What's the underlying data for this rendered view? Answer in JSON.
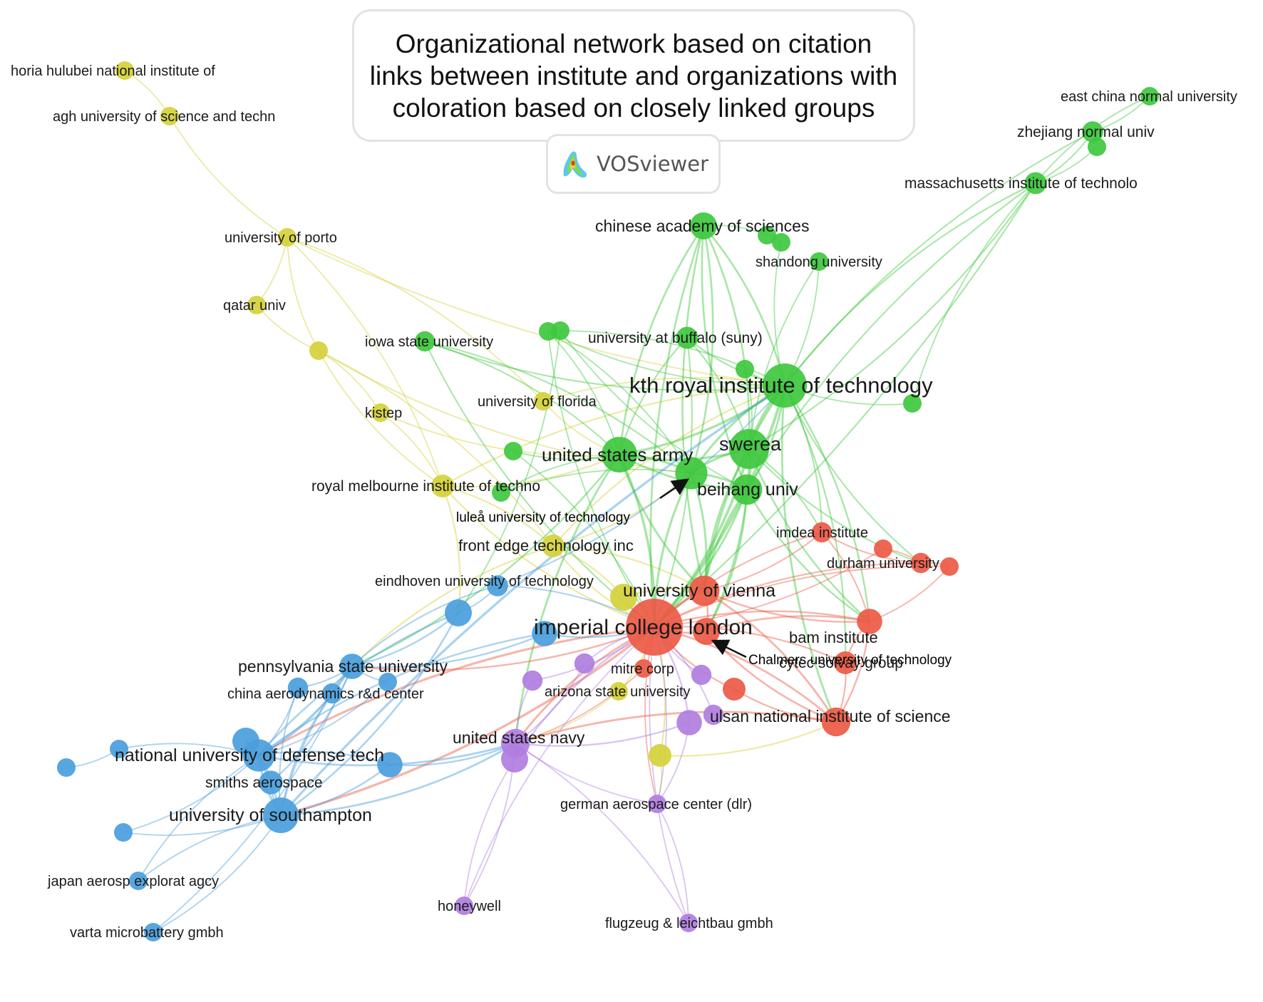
{
  "title": "Organizational network based on citation links between institute and organizations with coloration based on closely linked groups",
  "logo": {
    "text": "VOSviewer"
  },
  "clusters": {
    "yellow": "#d4d13a",
    "green": "#3ec83e",
    "red": "#ec5a45",
    "blue": "#4a9edc",
    "purple": "#b07ee0"
  },
  "network": {
    "nodes": [
      {
        "id": "horia",
        "label": "horia hulubei national institute of",
        "cluster": "yellow",
        "size": 1
      },
      {
        "id": "agh",
        "label": "agh university of science and techn",
        "cluster": "yellow",
        "size": 1
      },
      {
        "id": "porto",
        "label": "university of porto",
        "cluster": "yellow",
        "size": 1
      },
      {
        "id": "qatar",
        "label": "qatar univ",
        "cluster": "yellow",
        "size": 1
      },
      {
        "id": "y_unl1",
        "label": "",
        "cluster": "yellow",
        "size": 1
      },
      {
        "id": "kistep",
        "label": "kistep",
        "cluster": "yellow",
        "size": 1
      },
      {
        "id": "florida",
        "label": "university of florida",
        "cluster": "yellow",
        "size": 1
      },
      {
        "id": "rmit",
        "label": "royal melbourne institute of techno",
        "cluster": "yellow",
        "size": 1.5
      },
      {
        "id": "frontedge",
        "label": "front edge technology inc",
        "cluster": "yellow",
        "size": 1.5
      },
      {
        "id": "y_unl2",
        "label": "",
        "cluster": "yellow",
        "size": 2
      },
      {
        "id": "arizona",
        "label": "arizona state university",
        "cluster": "yellow",
        "size": 1
      },
      {
        "id": "y_unl3",
        "label": "",
        "cluster": "yellow",
        "size": 1.5
      },
      {
        "id": "ecnu",
        "label": "east china normal university",
        "cluster": "green",
        "size": 1
      },
      {
        "id": "zhejiang",
        "label": "zhejiang normal univ",
        "cluster": "green",
        "size": 1.3
      },
      {
        "id": "g_unl1",
        "label": "",
        "cluster": "green",
        "size": 1
      },
      {
        "id": "mit",
        "label": "massachusetts institute of technolo",
        "cluster": "green",
        "size": 1.4
      },
      {
        "id": "cas",
        "label": "chinese academy of sciences",
        "cluster": "green",
        "size": 2
      },
      {
        "id": "g_unl2",
        "label": "",
        "cluster": "green",
        "size": 1
      },
      {
        "id": "g_unl3",
        "label": "",
        "cluster": "green",
        "size": 1
      },
      {
        "id": "shandong",
        "label": "shandong university",
        "cluster": "green",
        "size": 1
      },
      {
        "id": "iowa",
        "label": "iowa state university",
        "cluster": "green",
        "size": 1.2
      },
      {
        "id": "g_unl4",
        "label": "",
        "cluster": "green",
        "size": 1
      },
      {
        "id": "g_unl5",
        "label": "",
        "cluster": "green",
        "size": 1
      },
      {
        "id": "buffalo",
        "label": "university at buffalo (suny)",
        "cluster": "green",
        "size": 1.4
      },
      {
        "id": "g_unl6",
        "label": "",
        "cluster": "green",
        "size": 1
      },
      {
        "id": "kth",
        "label": "kth royal institute of technology",
        "cluster": "green",
        "size": 4
      },
      {
        "id": "g_unl7",
        "label": "",
        "cluster": "green",
        "size": 1
      },
      {
        "id": "usarmy",
        "label": "united states army",
        "cluster": "green",
        "size": 3
      },
      {
        "id": "swerea",
        "label": "swerea",
        "cluster": "green",
        "size": 3.5
      },
      {
        "id": "lulea",
        "label": "luleå university of technology",
        "cluster": "green",
        "size": 2.6
      },
      {
        "id": "beihang",
        "label": "beihang univ",
        "cluster": "green",
        "size": 2.4
      },
      {
        "id": "g_unl8",
        "label": "",
        "cluster": "green",
        "size": 1
      },
      {
        "id": "g_unl9",
        "label": "",
        "cluster": "green",
        "size": 1
      },
      {
        "id": "imdea",
        "label": "imdea institute",
        "cluster": "red",
        "size": 1.2
      },
      {
        "id": "durham",
        "label": "durham university",
        "cluster": "red",
        "size": 1.2
      },
      {
        "id": "r_unl1",
        "label": "",
        "cluster": "red",
        "size": 1
      },
      {
        "id": "r_unl2",
        "label": "",
        "cluster": "red",
        "size": 1
      },
      {
        "id": "vienna",
        "label": "university of vienna",
        "cluster": "red",
        "size": 2.4
      },
      {
        "id": "imperial",
        "label": "imperial college london",
        "cluster": "red",
        "size": 5.5
      },
      {
        "id": "chalmers",
        "label": "Chalmers university of technology",
        "cluster": "red",
        "size": 2
      },
      {
        "id": "bam",
        "label": "bam institute",
        "cluster": "red",
        "size": 1.8
      },
      {
        "id": "mitre",
        "label": "mitre corp",
        "cluster": "red",
        "size": 1
      },
      {
        "id": "cytec",
        "label": "cytec solvay group",
        "cluster": "red",
        "size": 1.5
      },
      {
        "id": "r_unl3",
        "label": "",
        "cluster": "red",
        "size": 1.5
      },
      {
        "id": "ulsan",
        "label": "ulsan national institute of science",
        "cluster": "red",
        "size": 2.2
      },
      {
        "id": "eindhoven",
        "label": "eindhoven university of technology",
        "cluster": "blue",
        "size": 1.3
      },
      {
        "id": "b_unl1",
        "label": "",
        "cluster": "blue",
        "size": 2
      },
      {
        "id": "b_unl2",
        "label": "",
        "cluster": "blue",
        "size": 1.8
      },
      {
        "id": "pennstate",
        "label": "pennsylvania state university",
        "cluster": "blue",
        "size": 1.8
      },
      {
        "id": "b_unl3",
        "label": "",
        "cluster": "blue",
        "size": 1.2
      },
      {
        "id": "china_aero",
        "label": "china aerodynamics r&d center",
        "cluster": "blue",
        "size": 1.2
      },
      {
        "id": "b_unl4",
        "label": "",
        "cluster": "blue",
        "size": 1
      },
      {
        "id": "b_unl5",
        "label": "",
        "cluster": "blue",
        "size": 1
      },
      {
        "id": "b_unl6",
        "label": "",
        "cluster": "blue",
        "size": 1
      },
      {
        "id": "nudt",
        "label": "national university of defense tech",
        "cluster": "blue",
        "size": 2.6
      },
      {
        "id": "b_unl7",
        "label": "",
        "cluster": "blue",
        "size": 2
      },
      {
        "id": "smiths",
        "label": "smiths aerospace",
        "cluster": "blue",
        "size": 1.6
      },
      {
        "id": "b_unl8",
        "label": "",
        "cluster": "blue",
        "size": 1.8
      },
      {
        "id": "southampton",
        "label": "university of southampton",
        "cluster": "blue",
        "size": 3
      },
      {
        "id": "b_unl9",
        "label": "",
        "cluster": "blue",
        "size": 1
      },
      {
        "id": "jaxa",
        "label": "japan aerosp explorat agcy",
        "cluster": "blue",
        "size": 1
      },
      {
        "id": "varta",
        "label": "varta microbattery gmbh",
        "cluster": "blue",
        "size": 1
      },
      {
        "id": "usnavy",
        "label": "united states navy",
        "cluster": "purple",
        "size": 2.2
      },
      {
        "id": "p_unl1",
        "label": "",
        "cluster": "purple",
        "size": 2
      },
      {
        "id": "p_unl2",
        "label": "",
        "cluster": "purple",
        "size": 1.2
      },
      {
        "id": "p_unl3",
        "label": "",
        "cluster": "purple",
        "size": 1.2
      },
      {
        "id": "p_unl4",
        "label": "",
        "cluster": "purple",
        "size": 1.2
      },
      {
        "id": "p_unl5",
        "label": "",
        "cluster": "purple",
        "size": 1.8
      },
      {
        "id": "p_unl6",
        "label": "",
        "cluster": "purple",
        "size": 1.2
      },
      {
        "id": "dlr",
        "label": "german aerospace center (dlr)",
        "cluster": "purple",
        "size": 1
      },
      {
        "id": "honeywell",
        "label": "honeywell",
        "cluster": "purple",
        "size": 1
      },
      {
        "id": "flugzeug",
        "label": "flugzeug & leichtbau gmbh",
        "cluster": "purple",
        "size": 1
      }
    ],
    "edges": [
      [
        "horia",
        "agh"
      ],
      [
        "agh",
        "porto"
      ],
      [
        "porto",
        "qatar"
      ],
      [
        "porto",
        "y_unl1"
      ],
      [
        "porto",
        "florida"
      ],
      [
        "porto",
        "kth"
      ],
      [
        "porto",
        "rmit"
      ],
      [
        "qatar",
        "y_unl1"
      ],
      [
        "y_unl1",
        "kistep"
      ],
      [
        "y_unl1",
        "rmit"
      ],
      [
        "y_unl1",
        "frontedge"
      ],
      [
        "y_unl1",
        "lulea"
      ],
      [
        "kistep",
        "rmit"
      ],
      [
        "kistep",
        "usarmy"
      ],
      [
        "rmit",
        "frontedge"
      ],
      [
        "rmit",
        "imperial"
      ],
      [
        "rmit",
        "kth"
      ],
      [
        "rmit",
        "usarmy"
      ],
      [
        "rmit",
        "b_unl1"
      ],
      [
        "frontedge",
        "imperial"
      ],
      [
        "frontedge",
        "vienna"
      ],
      [
        "frontedge",
        "lulea"
      ],
      [
        "frontedge",
        "kth"
      ],
      [
        "frontedge",
        "pennstate"
      ],
      [
        "frontedge",
        "y_unl2"
      ],
      [
        "florida",
        "usarmy"
      ],
      [
        "florida",
        "kth"
      ],
      [
        "y_unl2",
        "imperial"
      ],
      [
        "y_unl2",
        "vienna"
      ],
      [
        "arizona",
        "imperial"
      ],
      [
        "arizona",
        "usnavy"
      ],
      [
        "y_unl3",
        "imperial"
      ],
      [
        "y_unl3",
        "dlr"
      ],
      [
        "y_unl3",
        "ulsan"
      ],
      [
        "ecnu",
        "zhejiang"
      ],
      [
        "ecnu",
        "mit"
      ],
      [
        "zhejiang",
        "mit"
      ],
      [
        "zhejiang",
        "kth"
      ],
      [
        "g_unl1",
        "mit"
      ],
      [
        "mit",
        "kth"
      ],
      [
        "mit",
        "swerea"
      ],
      [
        "mit",
        "beihang"
      ],
      [
        "mit",
        "imperial"
      ],
      [
        "mit",
        "g_unl7"
      ],
      [
        "cas",
        "kth"
      ],
      [
        "cas",
        "usarmy"
      ],
      [
        "cas",
        "swerea"
      ],
      [
        "cas",
        "beihang"
      ],
      [
        "cas",
        "lulea"
      ],
      [
        "cas",
        "imperial"
      ],
      [
        "cas",
        "g_unl2"
      ],
      [
        "cas",
        "vienna"
      ],
      [
        "g_unl2",
        "g_unl3"
      ],
      [
        "g_unl3",
        "kth"
      ],
      [
        "shandong",
        "kth"
      ],
      [
        "shandong",
        "swerea"
      ],
      [
        "iowa",
        "usarmy"
      ],
      [
        "iowa",
        "kth"
      ],
      [
        "iowa",
        "lulea"
      ],
      [
        "iowa",
        "imperial"
      ],
      [
        "g_unl4",
        "usarmy"
      ],
      [
        "g_unl4",
        "kth"
      ],
      [
        "g_unl4",
        "lulea"
      ],
      [
        "g_unl4",
        "imperial"
      ],
      [
        "g_unl5",
        "kth"
      ],
      [
        "g_unl5",
        "beihang"
      ],
      [
        "g_unl5",
        "b_unl1"
      ],
      [
        "buffalo",
        "kth"
      ],
      [
        "buffalo",
        "swerea"
      ],
      [
        "buffalo",
        "usarmy"
      ],
      [
        "buffalo",
        "imperial"
      ],
      [
        "g_unl6",
        "kth"
      ],
      [
        "g_unl6",
        "swerea"
      ],
      [
        "kth",
        "swerea"
      ],
      [
        "kth",
        "usarmy"
      ],
      [
        "kth",
        "lulea"
      ],
      [
        "kth",
        "beihang"
      ],
      [
        "kth",
        "g_unl7"
      ],
      [
        "kth",
        "imperial"
      ],
      [
        "kth",
        "vienna"
      ],
      [
        "kth",
        "bam"
      ],
      [
        "kth",
        "durham"
      ],
      [
        "kth",
        "imdea"
      ],
      [
        "kth",
        "ulsan"
      ],
      [
        "kth",
        "cytec"
      ],
      [
        "usarmy",
        "swerea"
      ],
      [
        "usarmy",
        "lulea"
      ],
      [
        "usarmy",
        "beihang"
      ],
      [
        "usarmy",
        "imperial"
      ],
      [
        "usarmy",
        "vienna"
      ],
      [
        "usarmy",
        "g_unl8"
      ],
      [
        "usarmy",
        "g_unl9"
      ],
      [
        "usarmy",
        "pennstate"
      ],
      [
        "usarmy",
        "usnavy"
      ],
      [
        "swerea",
        "beihang"
      ],
      [
        "swerea",
        "lulea"
      ],
      [
        "swerea",
        "imperial"
      ],
      [
        "swerea",
        "vienna"
      ],
      [
        "swerea",
        "chalmers"
      ],
      [
        "swerea",
        "bam"
      ],
      [
        "swerea",
        "imdea"
      ],
      [
        "swerea",
        "durham"
      ],
      [
        "lulea",
        "beihang"
      ],
      [
        "lulea",
        "imperial"
      ],
      [
        "lulea",
        "vienna"
      ],
      [
        "lulea",
        "g_unl9"
      ],
      [
        "beihang",
        "imperial"
      ],
      [
        "beihang",
        "vienna"
      ],
      [
        "beihang",
        "chalmers"
      ],
      [
        "beihang",
        "bam"
      ],
      [
        "g_unl8",
        "imperial"
      ],
      [
        "imdea",
        "durham"
      ],
      [
        "imdea",
        "bam"
      ],
      [
        "imdea",
        "imperial"
      ],
      [
        "imdea",
        "vienna"
      ],
      [
        "durham",
        "r_unl1"
      ],
      [
        "durham",
        "r_unl2"
      ],
      [
        "durham",
        "imperial"
      ],
      [
        "r_unl1",
        "imperial"
      ],
      [
        "r_unl2",
        "imperial"
      ],
      [
        "r_unl2",
        "bam"
      ],
      [
        "vienna",
        "imperial"
      ],
      [
        "vienna",
        "chalmers"
      ],
      [
        "vienna",
        "bam"
      ],
      [
        "vienna",
        "ulsan"
      ],
      [
        "imperial",
        "chalmers"
      ],
      [
        "imperial",
        "bam"
      ],
      [
        "imperial",
        "mitre"
      ],
      [
        "imperial",
        "cytec"
      ],
      [
        "imperial",
        "r_unl3"
      ],
      [
        "imperial",
        "ulsan"
      ],
      [
        "imperial",
        "usnavy"
      ],
      [
        "imperial",
        "pennstate"
      ],
      [
        "imperial",
        "nudt"
      ],
      [
        "imperial",
        "southampton"
      ],
      [
        "imperial",
        "dlr"
      ],
      [
        "chalmers",
        "bam"
      ],
      [
        "chalmers",
        "ulsan"
      ],
      [
        "bam",
        "ulsan"
      ],
      [
        "bam",
        "cytec"
      ],
      [
        "cytec",
        "ulsan"
      ],
      [
        "r_unl3",
        "ulsan"
      ],
      [
        "mitre",
        "usnavy"
      ],
      [
        "ulsan",
        "usnavy"
      ],
      [
        "eindhoven",
        "b_unl1"
      ],
      [
        "eindhoven",
        "pennstate"
      ],
      [
        "eindhoven",
        "imperial"
      ],
      [
        "eindhoven",
        "kth"
      ],
      [
        "b_unl1",
        "pennstate"
      ],
      [
        "b_unl1",
        "nudt"
      ],
      [
        "b_unl1",
        "southampton"
      ],
      [
        "b_unl2",
        "imperial"
      ],
      [
        "b_unl2",
        "pennstate"
      ],
      [
        "b_unl2",
        "nudt"
      ],
      [
        "pennstate",
        "b_unl3"
      ],
      [
        "pennstate",
        "china_aero"
      ],
      [
        "pennstate",
        "nudt"
      ],
      [
        "pennstate",
        "southampton"
      ],
      [
        "pennstate",
        "smiths"
      ],
      [
        "pennstate",
        "b_unl4"
      ],
      [
        "b_unl3",
        "nudt"
      ],
      [
        "b_unl3",
        "southampton"
      ],
      [
        "china_aero",
        "nudt"
      ],
      [
        "china_aero",
        "southampton"
      ],
      [
        "b_unl4",
        "nudt"
      ],
      [
        "b_unl5",
        "b_unl6"
      ],
      [
        "b_unl6",
        "nudt"
      ],
      [
        "nudt",
        "b_unl7"
      ],
      [
        "nudt",
        "smiths"
      ],
      [
        "nudt",
        "southampton"
      ],
      [
        "nudt",
        "b_unl8"
      ],
      [
        "nudt",
        "usnavy"
      ],
      [
        "b_unl7",
        "southampton"
      ],
      [
        "smiths",
        "southampton"
      ],
      [
        "b_unl8",
        "southampton"
      ],
      [
        "b_unl8",
        "usnavy"
      ],
      [
        "southampton",
        "b_unl9"
      ],
      [
        "southampton",
        "jaxa"
      ],
      [
        "southampton",
        "varta"
      ],
      [
        "southampton",
        "usnavy"
      ],
      [
        "southampton",
        "kth"
      ],
      [
        "b_unl9",
        "nudt"
      ],
      [
        "jaxa",
        "nudt"
      ],
      [
        "varta",
        "pennstate"
      ],
      [
        "usnavy",
        "p_unl1"
      ],
      [
        "usnavy",
        "p_unl2"
      ],
      [
        "usnavy",
        "p_unl3"
      ],
      [
        "usnavy",
        "dlr"
      ],
      [
        "usnavy",
        "honeywell"
      ],
      [
        "usnavy",
        "p_unl5"
      ],
      [
        "p_unl1",
        "imperial"
      ],
      [
        "p_unl1",
        "honeywell"
      ],
      [
        "p_unl2",
        "imperial"
      ],
      [
        "p_unl3",
        "imperial"
      ],
      [
        "p_unl4",
        "imperial"
      ],
      [
        "p_unl5",
        "imperial"
      ],
      [
        "p_unl5",
        "dlr"
      ],
      [
        "p_unl6",
        "imperial"
      ],
      [
        "dlr",
        "flugzeug"
      ],
      [
        "dlr",
        "imperial"
      ],
      [
        "flugzeug",
        "imperial"
      ],
      [
        "flugzeug",
        "usnavy"
      ],
      [
        "honeywell",
        "imperial"
      ]
    ],
    "callouts": [
      {
        "node": "lulea",
        "label": "luleå university of technology"
      },
      {
        "node": "chalmers",
        "label": "Chalmers university of technology"
      }
    ]
  }
}
